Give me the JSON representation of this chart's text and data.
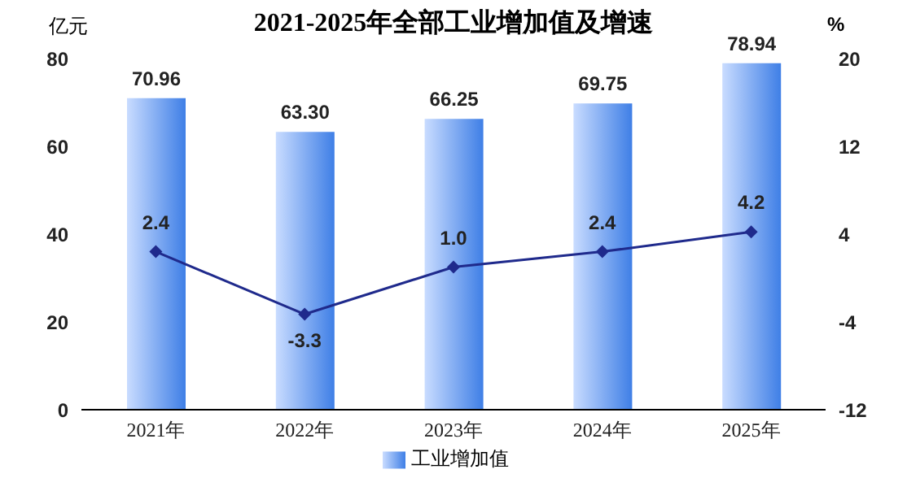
{
  "chart_data": {
    "type": "bar",
    "title": "2021-2025年全部工业增加值及增速",
    "ylabel": "亿元",
    "y2label": "%",
    "categories": [
      "2021年",
      "2022年",
      "2023年",
      "2024年",
      "2025年"
    ],
    "series": [
      {
        "name": "工业增加值",
        "color": "#3f7fe6",
        "values": [
          70.96,
          63.3,
          66.25,
          69.75,
          78.94
        ],
        "value_labels": [
          "70.96",
          "63.30",
          "66.25",
          "69.75",
          "78.94"
        ]
      },
      {
        "type": "line",
        "axis": "y2",
        "color": "#1f2a8c",
        "marker": "diamond",
        "values": [
          2.4,
          -3.3,
          1.0,
          2.4,
          4.2
        ],
        "value_labels": [
          "2.4",
          "-3.3",
          "1.0",
          "2.4",
          "4.2"
        ]
      }
    ],
    "ylim": [
      0,
      80
    ],
    "yticks": [
      0,
      20,
      40,
      60,
      80
    ],
    "y2lim": [
      -12,
      20
    ],
    "y2ticks": [
      -12,
      -4,
      4,
      12,
      20
    ],
    "grid": false,
    "legend": "bottom"
  }
}
